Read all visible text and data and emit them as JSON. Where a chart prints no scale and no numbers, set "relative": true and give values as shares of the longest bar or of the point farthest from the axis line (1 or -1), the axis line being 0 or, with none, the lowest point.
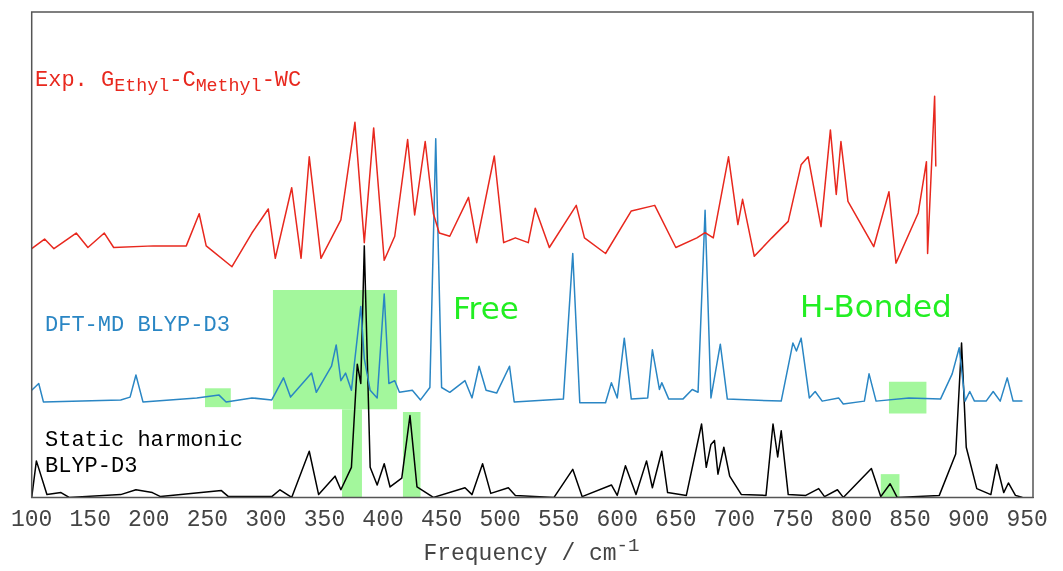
{
  "chart_data": {
    "type": "line",
    "relative": true,
    "xlabel": "Frequency / cm$^{-1}$",
    "xlim": [
      100,
      955
    ],
    "xticks": [
      100,
      150,
      200,
      250,
      300,
      350,
      400,
      450,
      500,
      550,
      600,
      650,
      700,
      750,
      800,
      850,
      900,
      950
    ],
    "annotations": [
      "Free",
      "H-Bonded"
    ],
    "bands": [
      {
        "axis": "x",
        "from": 248,
        "to": 270,
        "color": "#a3f79c"
      },
      {
        "axis": "x",
        "from": 306,
        "to": 412,
        "color": "#a3f79c"
      },
      {
        "axis": "x",
        "from": 365,
        "to": 382,
        "color": "#a3f79c"
      },
      {
        "axis": "x",
        "from": 417,
        "to": 432,
        "color": "#a3f79c"
      },
      {
        "axis": "x",
        "from": 832,
        "to": 864,
        "color": "#a3f79c"
      },
      {
        "axis": "x",
        "from": 825,
        "to": 841,
        "color": "#a3f79c"
      }
    ],
    "series": [
      {
        "name": "Exp. G$_{Ethyl}$-C$_{Methyl}$-WC",
        "color": "#e8281e",
        "x": [
          100,
          111,
          119,
          138,
          148,
          162,
          170,
          204,
          232,
          243,
          249,
          271,
          288,
          302,
          308,
          322,
          330,
          337,
          347,
          364,
          376,
          384,
          392,
          401,
          410,
          421,
          427,
          436,
          443,
          448,
          457,
          473,
          480,
          495,
          503,
          513,
          524,
          530,
          542,
          565,
          572,
          590,
          612,
          632,
          650,
          668,
          675,
          682,
          695,
          703,
          707,
          717,
          732,
          746,
          757,
          763,
          774,
          782,
          787,
          791,
          797,
          819,
          832,
          838,
          857,
          864,
          865,
          871,
          872
        ],
        "values": [
          0.62,
          0.644,
          0.62,
          0.659,
          0.623,
          0.659,
          0.623,
          0.627,
          0.627,
          0.707,
          0.627,
          0.575,
          0.659,
          0.719,
          0.596,
          0.772,
          0.596,
          0.849,
          0.596,
          0.692,
          0.935,
          0.635,
          0.921,
          0.591,
          0.651,
          0.892,
          0.704,
          0.887,
          0.707,
          0.659,
          0.651,
          0.748,
          0.635,
          0.851,
          0.635,
          0.647,
          0.635,
          0.721,
          0.623,
          0.728,
          0.647,
          0.608,
          0.714,
          0.728,
          0.623,
          0.647,
          0.66,
          0.647,
          0.849,
          0.68,
          0.743,
          0.601,
          0.647,
          0.688,
          0.829,
          0.849,
          0.675,
          0.916,
          0.755,
          0.887,
          0.738,
          0.625,
          0.762,
          0.584,
          0.709,
          0.837,
          0.608,
          1.0,
          0.825
        ]
      },
      {
        "name": "DFT-MD BLYP-D3",
        "color": "#2a86c4",
        "x": [
          100,
          106,
          110,
          176,
          184,
          189,
          195,
          241,
          260,
          266,
          288,
          305,
          315,
          321,
          339,
          343,
          356,
          360,
          364,
          368,
          373,
          381,
          384,
          389,
          395,
          401,
          405,
          410,
          414,
          425,
          432,
          440,
          445,
          450,
          457,
          470,
          476,
          482,
          488,
          497,
          508,
          512,
          554,
          562,
          568,
          590,
          595,
          600,
          606,
          612,
          626,
          630,
          636,
          638,
          644,
          656,
          664,
          669,
          675,
          680,
          688,
          694,
          740,
          750,
          753,
          757,
          764,
          769,
          775,
          789,
          793,
          811,
          815,
          821,
          849,
          876,
          886,
          892,
          897,
          901,
          905,
          915,
          921,
          927,
          933,
          938,
          946
        ],
        "values": [
          0.267,
          0.284,
          0.238,
          0.243,
          0.25,
          0.305,
          0.238,
          0.248,
          0.255,
          0.238,
          0.248,
          0.243,
          0.298,
          0.25,
          0.31,
          0.262,
          0.327,
          0.38,
          0.291,
          0.31,
          0.267,
          0.476,
          0.346,
          0.267,
          0.248,
          0.507,
          0.284,
          0.291,
          0.262,
          0.267,
          0.243,
          0.274,
          0.894,
          0.274,
          0.262,
          0.291,
          0.248,
          0.327,
          0.267,
          0.26,
          0.327,
          0.238,
          0.245,
          0.608,
          0.236,
          0.236,
          0.286,
          0.248,
          0.397,
          0.245,
          0.248,
          0.368,
          0.269,
          0.286,
          0.245,
          0.245,
          0.269,
          0.262,
          0.716,
          0.248,
          0.382,
          0.245,
          0.24,
          0.385,
          0.365,
          0.397,
          0.248,
          0.264,
          0.24,
          0.248,
          0.233,
          0.24,
          0.308,
          0.24,
          0.248,
          0.245,
          0.308,
          0.373,
          0.24,
          0.264,
          0.24,
          0.24,
          0.264,
          0.24,
          0.298,
          0.24,
          0.24
        ]
      },
      {
        "name": "Static harmonic\nBLYP-D3",
        "color": "#000000",
        "x": [
          100,
          104,
          113,
          125,
          132,
          176,
          189,
          203,
          210,
          262,
          268,
          305,
          312,
          322,
          337,
          345,
          359,
          364,
          373,
          378,
          381,
          384,
          389,
          395,
          401,
          406,
          416,
          423,
          429,
          443,
          470,
          476,
          485,
          492,
          507,
          513,
          546,
          562,
          570,
          595,
          600,
          607,
          616,
          625,
          630,
          638,
          643,
          659,
          672,
          676,
          680,
          683,
          686,
          691,
          696,
          706,
          727,
          733,
          737,
          740,
          746,
          761,
          772,
          777,
          788,
          793,
          817,
          825,
          833,
          839,
          875,
          889,
          894,
          898,
          907,
          919,
          924,
          930,
          934,
          940,
          946
        ],
        "values": [
          0,
          0.091,
          0.007,
          0.012,
          0,
          0.007,
          0.019,
          0.012,
          0.002,
          0.017,
          0.002,
          0.002,
          0.019,
          0,
          0.115,
          0.007,
          0.053,
          0.019,
          0.075,
          0.332,
          0.284,
          0.627,
          0.075,
          0.031,
          0.084,
          0.026,
          0.048,
          0.204,
          0.026,
          0,
          0.024,
          0.007,
          0.084,
          0.01,
          0.024,
          0.005,
          0,
          0.07,
          0.002,
          0.031,
          0.005,
          0.079,
          0.007,
          0.091,
          0.024,
          0.115,
          0.012,
          0.005,
          0.183,
          0.075,
          0.132,
          0.142,
          0.058,
          0.125,
          0.053,
          0.007,
          0.005,
          0.183,
          0.101,
          0.166,
          0.007,
          0.005,
          0.022,
          0.002,
          0.019,
          0,
          0.072,
          0.002,
          0.034,
          0,
          0.005,
          0.108,
          0.385,
          0.125,
          0.022,
          0.007,
          0.082,
          0.012,
          0.036,
          0.005,
          0
        ]
      }
    ]
  }
}
